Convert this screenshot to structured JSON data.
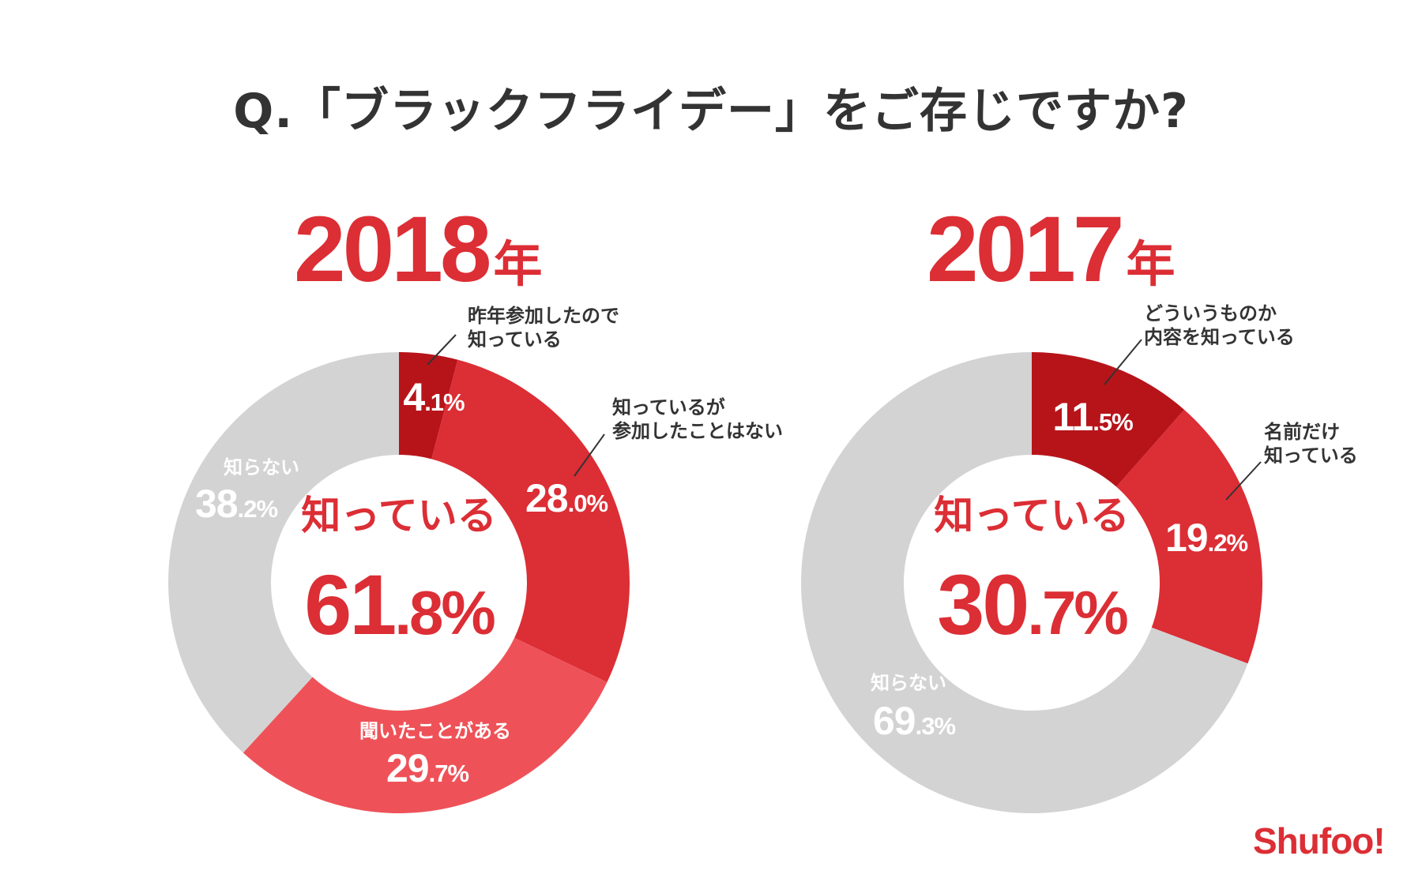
{
  "title": "Q.「ブラックフライデー」をご存じですか?",
  "logo": "Shufoo!",
  "colors": {
    "accent": "#dc2e35",
    "dark_red": "#b7141a",
    "light_red": "#ee5258",
    "grey": "#d3d3d3",
    "text": "#333333"
  },
  "chart_data": [
    {
      "type": "pie",
      "year": "2018",
      "year_unit": "年",
      "center_label": "知っている",
      "center_value": "61.8",
      "center_unit": "%",
      "slices": [
        {
          "label": "昨年参加したので\n知っている",
          "value": 4.1,
          "color": "#b7141a"
        },
        {
          "label": "知っているが\n参加したことはない",
          "value": 28.0,
          "color": "#dc2e35"
        },
        {
          "label": "聞いたことがある",
          "value": 29.7,
          "color": "#ee5258"
        },
        {
          "label": "知らない",
          "value": 38.2,
          "color": "#d3d3d3"
        }
      ]
    },
    {
      "type": "pie",
      "year": "2017",
      "year_unit": "年",
      "center_label": "知っている",
      "center_value": "30.7",
      "center_unit": "%",
      "slices": [
        {
          "label": "どういうものか\n内容を知っている",
          "value": 11.5,
          "color": "#b7141a"
        },
        {
          "label": "名前だけ\n知っている",
          "value": 19.2,
          "color": "#dc2e35"
        },
        {
          "label": "知らない",
          "value": 69.3,
          "color": "#d3d3d3"
        }
      ]
    }
  ]
}
